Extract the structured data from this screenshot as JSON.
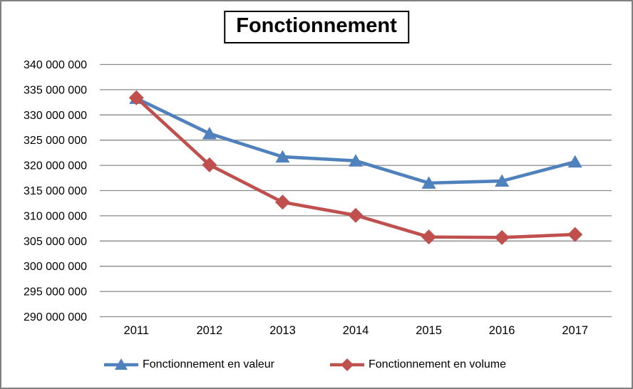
{
  "window": {
    "background_color": "#FFFFFF",
    "border_color": "#808080"
  },
  "chart_data": {
    "type": "line",
    "title": "Fonctionnement",
    "categories": [
      "2011",
      "2012",
      "2013",
      "2014",
      "2015",
      "2016",
      "2017"
    ],
    "series": [
      {
        "name": "Fonctionnement en valeur",
        "color": "#4F81BD",
        "marker": "triangle",
        "values": [
          333300000,
          326300000,
          321700000,
          320900000,
          316500000,
          316900000,
          320700000
        ]
      },
      {
        "name": "Fonctionnement en volume",
        "color": "#C0504D",
        "marker": "diamond",
        "values": [
          333400000,
          320100000,
          312700000,
          310100000,
          305800000,
          305700000,
          306300000
        ]
      }
    ],
    "xlabel": "",
    "ylabel": "",
    "ylim": [
      290000000,
      340000000
    ],
    "y_tick_step": 5000000,
    "y_tick_labels": [
      "340 000 000",
      "335 000 000",
      "330 000 000",
      "325 000 000",
      "320 000 000",
      "315 000 000",
      "310 000 000",
      "305 000 000",
      "300 000 000",
      "295 000 000",
      "290 000 000"
    ],
    "grid": true,
    "gridline_color": "#898989",
    "axis_text_color": "#000000",
    "legend_position": "bottom"
  }
}
